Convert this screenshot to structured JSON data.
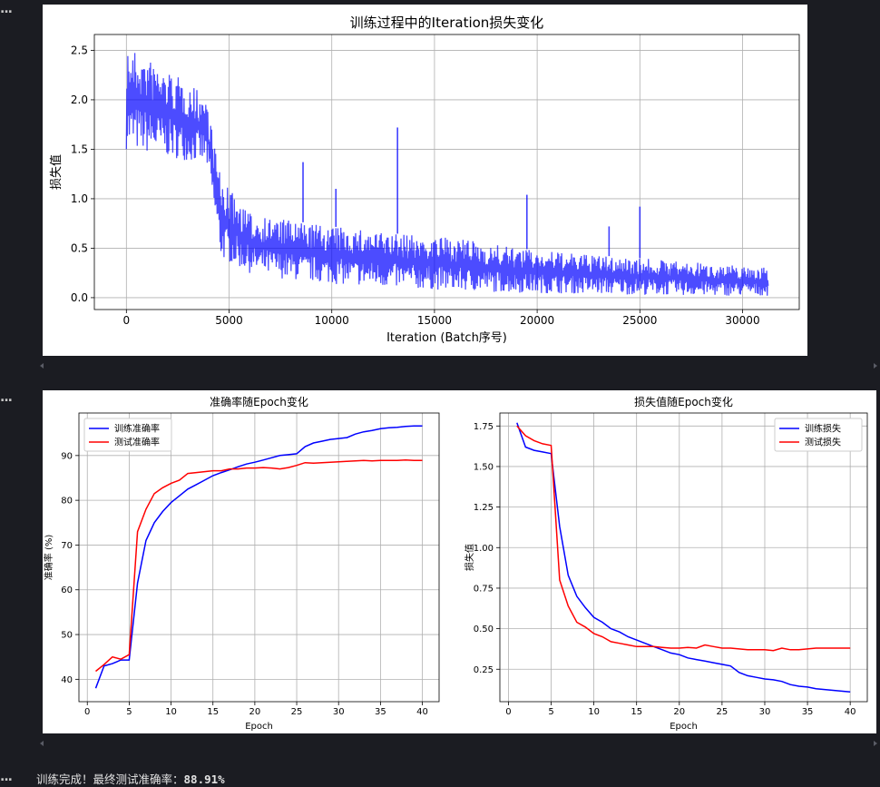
{
  "output_cells": [
    {
      "ellipsis": "..."
    },
    {
      "ellipsis": "..."
    },
    {
      "ellipsis": "..."
    }
  ],
  "final_output": {
    "prefix": "训练完成！最终测试准确率：",
    "value": "88.91%"
  },
  "colors": {
    "background": "#1b1c22",
    "train": "#0000ff",
    "test": "#ff0000",
    "iteration_line": "#0000ff"
  },
  "chart_data": [
    {
      "type": "line",
      "title": "训练过程中的Iteration损失变化",
      "xlabel": "Iteration (Batch序号)",
      "ylabel": "损失值",
      "xlim": [
        -1560,
        32760
      ],
      "ylim": [
        -0.12,
        2.66
      ],
      "xticks": [
        0,
        5000,
        10000,
        15000,
        20000,
        25000,
        30000
      ],
      "yticks": [
        0.0,
        0.5,
        1.0,
        1.5,
        2.0,
        2.5
      ],
      "grid": true,
      "series": [
        {
          "x": [
            0,
            3900,
            4600,
            6000,
            8000,
            10000,
            13000,
            16000,
            19000,
            22000,
            25000,
            28000,
            31250
          ],
          "upper": [
            2.55,
            2.05,
            1.2,
            0.85,
            0.78,
            0.72,
            0.65,
            0.6,
            0.5,
            0.44,
            0.4,
            0.35,
            0.3
          ],
          "lower": [
            1.5,
            1.35,
            0.4,
            0.25,
            0.18,
            0.14,
            0.1,
            0.07,
            0.05,
            0.04,
            0.03,
            0.02,
            0.02
          ],
          "spikes": [
            [
              0,
              2.55
            ],
            [
              8600,
              1.37
            ],
            [
              10200,
              1.1
            ],
            [
              13200,
              1.72
            ],
            [
              19500,
              1.04
            ],
            [
              25000,
              0.92
            ],
            [
              23500,
              0.72
            ]
          ]
        }
      ]
    },
    {
      "type": "line",
      "title": "准确率随Epoch变化",
      "xlabel": "Epoch",
      "ylabel": "准确率 (%)",
      "xlim": [
        -1,
        42
      ],
      "ylim": [
        35,
        99.5
      ],
      "xticks": [
        0,
        5,
        10,
        15,
        20,
        25,
        30,
        35,
        40
      ],
      "yticks": [
        40,
        50,
        60,
        70,
        80,
        90
      ],
      "grid": true,
      "legend": "top-left",
      "categories": [
        1,
        2,
        3,
        4,
        5,
        6,
        7,
        8,
        9,
        10,
        11,
        12,
        13,
        14,
        15,
        16,
        17,
        18,
        19,
        20,
        21,
        22,
        23,
        24,
        25,
        26,
        27,
        28,
        29,
        30,
        31,
        32,
        33,
        34,
        35,
        36,
        37,
        38,
        39,
        40
      ],
      "series": [
        {
          "name": "训练准确率",
          "values": [
            38.0,
            43.0,
            43.5,
            44.3,
            44.3,
            61.5,
            71.0,
            75.0,
            77.5,
            79.5,
            81.0,
            82.5,
            83.5,
            84.5,
            85.5,
            86.2,
            86.8,
            87.5,
            88.1,
            88.5,
            89.0,
            89.5,
            90.0,
            90.2,
            90.4,
            92.0,
            92.8,
            93.2,
            93.6,
            93.8,
            94.0,
            94.8,
            95.3,
            95.6,
            96.0,
            96.2,
            96.3,
            96.5,
            96.6,
            96.6
          ]
        },
        {
          "name": "测试准确率",
          "values": [
            41.8,
            43.3,
            45.0,
            44.5,
            45.5,
            73.0,
            78.0,
            81.5,
            82.8,
            83.8,
            84.5,
            86.0,
            86.2,
            86.4,
            86.6,
            86.6,
            87.0,
            87.0,
            87.2,
            87.2,
            87.3,
            87.2,
            87.0,
            87.3,
            87.8,
            88.4,
            88.3,
            88.4,
            88.5,
            88.6,
            88.7,
            88.8,
            88.9,
            88.8,
            88.9,
            88.9,
            88.9,
            89.0,
            88.9,
            88.9
          ]
        }
      ]
    },
    {
      "type": "line",
      "title": "损失值随Epoch变化",
      "xlabel": "Epoch",
      "ylabel": "损失值",
      "xlim": [
        -1,
        42
      ],
      "ylim": [
        0.05,
        1.83
      ],
      "xticks": [
        0,
        5,
        10,
        15,
        20,
        25,
        30,
        35,
        40
      ],
      "yticks": [
        0.25,
        0.5,
        0.75,
        1.0,
        1.25,
        1.5,
        1.75
      ],
      "grid": true,
      "legend": "top-right",
      "categories": [
        1,
        2,
        3,
        4,
        5,
        6,
        7,
        8,
        9,
        10,
        11,
        12,
        13,
        14,
        15,
        16,
        17,
        18,
        19,
        20,
        21,
        22,
        23,
        24,
        25,
        26,
        27,
        28,
        29,
        30,
        31,
        32,
        33,
        34,
        35,
        36,
        37,
        38,
        39,
        40
      ],
      "series": [
        {
          "name": "训练损失",
          "values": [
            1.77,
            1.62,
            1.6,
            1.59,
            1.58,
            1.13,
            0.83,
            0.7,
            0.63,
            0.57,
            0.54,
            0.5,
            0.48,
            0.45,
            0.43,
            0.41,
            0.39,
            0.37,
            0.35,
            0.34,
            0.32,
            0.31,
            0.3,
            0.29,
            0.28,
            0.27,
            0.23,
            0.21,
            0.2,
            0.19,
            0.185,
            0.175,
            0.155,
            0.145,
            0.14,
            0.13,
            0.125,
            0.12,
            0.115,
            0.11
          ]
        },
        {
          "name": "测试损失",
          "values": [
            1.75,
            1.69,
            1.66,
            1.64,
            1.63,
            0.8,
            0.64,
            0.54,
            0.51,
            0.47,
            0.45,
            0.42,
            0.41,
            0.4,
            0.39,
            0.39,
            0.39,
            0.385,
            0.38,
            0.38,
            0.385,
            0.38,
            0.4,
            0.39,
            0.38,
            0.38,
            0.375,
            0.37,
            0.37,
            0.37,
            0.365,
            0.38,
            0.37,
            0.37,
            0.375,
            0.38,
            0.38,
            0.38,
            0.38,
            0.38
          ]
        }
      ]
    }
  ]
}
